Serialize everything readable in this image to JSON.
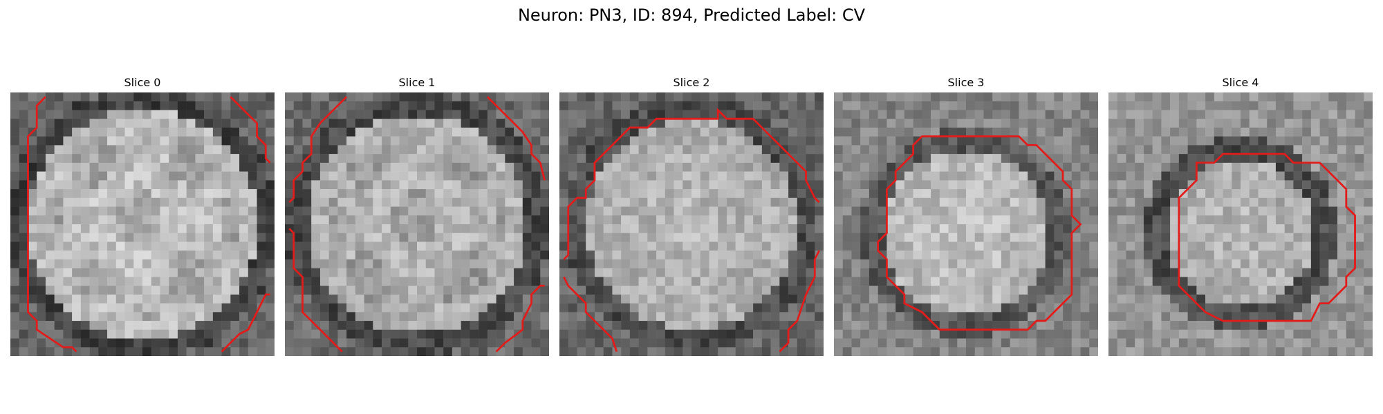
{
  "figure": {
    "title": "Neuron: PN3, ID: 894, Predicted Label: CV"
  },
  "panels": [
    {
      "title": "Slice 0",
      "contour_visible": "partial-left-right"
    },
    {
      "title": "Slice 1",
      "contour_visible": "partial-left-right"
    },
    {
      "title": "Slice 2",
      "contour_visible": "large-octagon-clipped"
    },
    {
      "title": "Slice 3",
      "contour_visible": "octagon"
    },
    {
      "title": "Slice 4",
      "contour_visible": "octagon-small"
    }
  ],
  "colors": {
    "contour": "#e21b1b",
    "background": "#ffffff"
  }
}
